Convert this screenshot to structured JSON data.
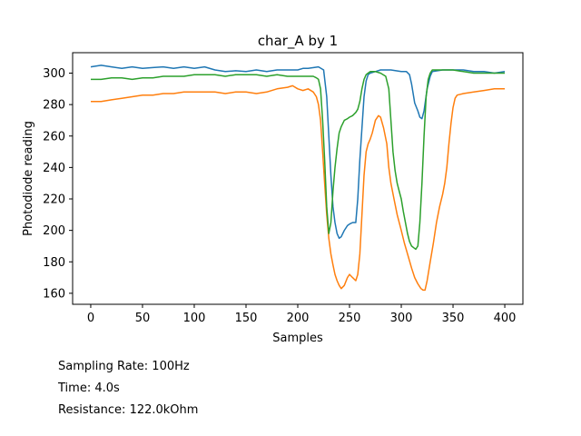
{
  "chart_data": {
    "type": "line",
    "title": "char_A by 1",
    "xlabel": "Samples",
    "ylabel": "Photodiode reading",
    "xlim": [
      -17.5,
      417.5
    ],
    "ylim": [
      153,
      313
    ],
    "xticks": [
      0,
      50,
      100,
      150,
      200,
      250,
      300,
      350,
      400
    ],
    "yticks": [
      160,
      180,
      200,
      220,
      240,
      260,
      280,
      300
    ],
    "grid": false,
    "legend": "none",
    "series": [
      {
        "color": "#1f77b4",
        "points": [
          [
            0,
            304
          ],
          [
            10,
            305
          ],
          [
            20,
            304
          ],
          [
            30,
            303
          ],
          [
            40,
            304
          ],
          [
            50,
            303
          ],
          [
            60,
            303.5
          ],
          [
            70,
            304
          ],
          [
            80,
            303
          ],
          [
            90,
            304
          ],
          [
            100,
            303
          ],
          [
            110,
            304
          ],
          [
            120,
            302
          ],
          [
            130,
            301
          ],
          [
            140,
            301.5
          ],
          [
            150,
            301
          ],
          [
            160,
            302
          ],
          [
            170,
            301
          ],
          [
            180,
            302
          ],
          [
            190,
            302
          ],
          [
            200,
            302
          ],
          [
            205,
            303
          ],
          [
            210,
            303
          ],
          [
            220,
            304
          ],
          [
            225,
            302
          ],
          [
            228,
            285
          ],
          [
            230,
            260
          ],
          [
            232,
            235
          ],
          [
            234,
            215
          ],
          [
            236,
            205
          ],
          [
            238,
            198
          ],
          [
            240,
            195
          ],
          [
            242,
            196
          ],
          [
            245,
            200
          ],
          [
            248,
            203
          ],
          [
            250,
            204
          ],
          [
            253,
            205
          ],
          [
            256,
            205
          ],
          [
            258,
            220
          ],
          [
            260,
            245
          ],
          [
            262,
            265
          ],
          [
            264,
            285
          ],
          [
            266,
            295
          ],
          [
            268,
            299
          ],
          [
            270,
            300
          ],
          [
            275,
            301
          ],
          [
            280,
            302
          ],
          [
            290,
            302
          ],
          [
            300,
            301
          ],
          [
            305,
            301
          ],
          [
            308,
            299
          ],
          [
            310,
            293
          ],
          [
            313,
            281
          ],
          [
            316,
            276
          ],
          [
            318,
            272
          ],
          [
            320,
            271
          ],
          [
            322,
            276
          ],
          [
            325,
            290
          ],
          [
            328,
            298
          ],
          [
            330,
            301
          ],
          [
            340,
            302
          ],
          [
            350,
            302
          ],
          [
            360,
            302
          ],
          [
            370,
            301
          ],
          [
            380,
            301
          ],
          [
            390,
            300
          ],
          [
            400,
            301
          ]
        ]
      },
      {
        "color": "#ff7f0e",
        "points": [
          [
            0,
            282
          ],
          [
            10,
            282
          ],
          [
            20,
            283
          ],
          [
            30,
            284
          ],
          [
            40,
            285
          ],
          [
            50,
            286
          ],
          [
            60,
            286
          ],
          [
            70,
            287
          ],
          [
            80,
            287
          ],
          [
            90,
            288
          ],
          [
            100,
            288
          ],
          [
            110,
            288
          ],
          [
            120,
            288
          ],
          [
            130,
            287
          ],
          [
            140,
            288
          ],
          [
            150,
            288
          ],
          [
            160,
            287
          ],
          [
            170,
            288
          ],
          [
            180,
            290
          ],
          [
            190,
            291
          ],
          [
            195,
            292
          ],
          [
            200,
            290
          ],
          [
            205,
            289
          ],
          [
            210,
            290
          ],
          [
            215,
            288
          ],
          [
            218,
            285
          ],
          [
            220,
            280
          ],
          [
            222,
            270
          ],
          [
            224,
            250
          ],
          [
            226,
            230
          ],
          [
            228,
            210
          ],
          [
            230,
            195
          ],
          [
            232,
            185
          ],
          [
            234,
            178
          ],
          [
            236,
            172
          ],
          [
            238,
            168
          ],
          [
            240,
            165
          ],
          [
            242,
            163
          ],
          [
            245,
            165
          ],
          [
            248,
            170
          ],
          [
            250,
            172
          ],
          [
            253,
            170
          ],
          [
            256,
            168
          ],
          [
            258,
            172
          ],
          [
            260,
            185
          ],
          [
            262,
            210
          ],
          [
            264,
            235
          ],
          [
            266,
            250
          ],
          [
            268,
            255
          ],
          [
            270,
            258
          ],
          [
            272,
            262
          ],
          [
            275,
            270
          ],
          [
            278,
            273
          ],
          [
            280,
            272
          ],
          [
            283,
            265
          ],
          [
            286,
            255
          ],
          [
            288,
            240
          ],
          [
            290,
            230
          ],
          [
            293,
            220
          ],
          [
            296,
            210
          ],
          [
            300,
            200
          ],
          [
            303,
            192
          ],
          [
            306,
            185
          ],
          [
            310,
            176
          ],
          [
            313,
            170
          ],
          [
            316,
            166
          ],
          [
            319,
            163
          ],
          [
            321,
            162
          ],
          [
            323,
            162
          ],
          [
            325,
            168
          ],
          [
            328,
            180
          ],
          [
            331,
            192
          ],
          [
            334,
            205
          ],
          [
            337,
            215
          ],
          [
            340,
            223
          ],
          [
            342,
            230
          ],
          [
            344,
            240
          ],
          [
            346,
            255
          ],
          [
            348,
            268
          ],
          [
            350,
            278
          ],
          [
            352,
            284
          ],
          [
            354,
            286
          ],
          [
            360,
            287
          ],
          [
            370,
            288
          ],
          [
            380,
            289
          ],
          [
            390,
            290
          ],
          [
            400,
            290
          ]
        ]
      },
      {
        "color": "#2ca02c",
        "points": [
          [
            0,
            296
          ],
          [
            10,
            296
          ],
          [
            20,
            297
          ],
          [
            30,
            297
          ],
          [
            40,
            296
          ],
          [
            50,
            297
          ],
          [
            60,
            297
          ],
          [
            70,
            298
          ],
          [
            80,
            298
          ],
          [
            90,
            298
          ],
          [
            100,
            299
          ],
          [
            110,
            299
          ],
          [
            120,
            299
          ],
          [
            130,
            298
          ],
          [
            140,
            299
          ],
          [
            150,
            299
          ],
          [
            160,
            299
          ],
          [
            170,
            298
          ],
          [
            180,
            299
          ],
          [
            190,
            298
          ],
          [
            200,
            298
          ],
          [
            210,
            298
          ],
          [
            215,
            298
          ],
          [
            218,
            297
          ],
          [
            220,
            296
          ],
          [
            222,
            290
          ],
          [
            224,
            270
          ],
          [
            226,
            245
          ],
          [
            228,
            215
          ],
          [
            230,
            198
          ],
          [
            232,
            205
          ],
          [
            234,
            225
          ],
          [
            236,
            240
          ],
          [
            238,
            252
          ],
          [
            240,
            262
          ],
          [
            242,
            266
          ],
          [
            245,
            270
          ],
          [
            248,
            271
          ],
          [
            250,
            272
          ],
          [
            253,
            273
          ],
          [
            256,
            275
          ],
          [
            258,
            277
          ],
          [
            260,
            282
          ],
          [
            262,
            290
          ],
          [
            264,
            296
          ],
          [
            266,
            299
          ],
          [
            268,
            300
          ],
          [
            270,
            301
          ],
          [
            275,
            301
          ],
          [
            280,
            300
          ],
          [
            285,
            298
          ],
          [
            288,
            290
          ],
          [
            290,
            270
          ],
          [
            292,
            250
          ],
          [
            294,
            238
          ],
          [
            296,
            230
          ],
          [
            298,
            225
          ],
          [
            300,
            220
          ],
          [
            302,
            212
          ],
          [
            304,
            205
          ],
          [
            306,
            198
          ],
          [
            308,
            193
          ],
          [
            310,
            190
          ],
          [
            312,
            189
          ],
          [
            314,
            188
          ],
          [
            316,
            190
          ],
          [
            318,
            205
          ],
          [
            320,
            230
          ],
          [
            322,
            260
          ],
          [
            324,
            285
          ],
          [
            326,
            296
          ],
          [
            328,
            300
          ],
          [
            330,
            302
          ],
          [
            340,
            302
          ],
          [
            350,
            302
          ],
          [
            360,
            301
          ],
          [
            370,
            300
          ],
          [
            380,
            300
          ],
          [
            390,
            300
          ],
          [
            400,
            300
          ]
        ]
      }
    ]
  },
  "info": {
    "sampling_rate": "Sampling Rate: 100Hz",
    "time": "Time: 4.0s",
    "resistance": "Resistance: 122.0kOhm"
  }
}
